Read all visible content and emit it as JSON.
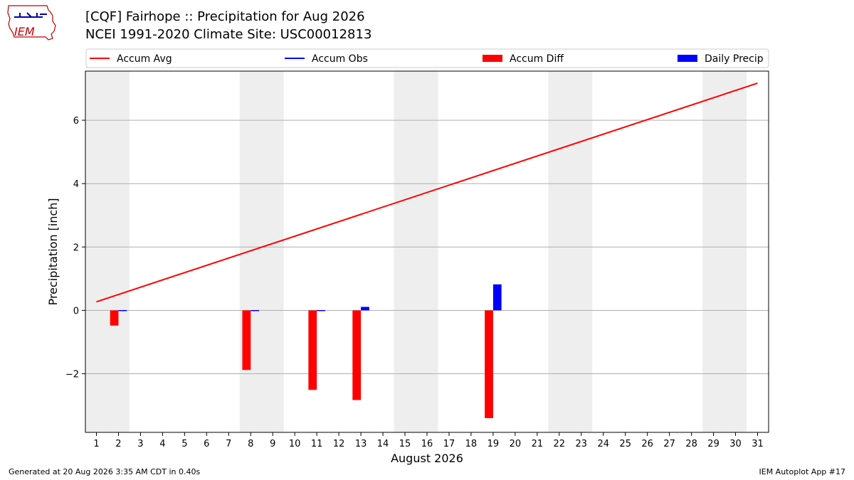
{
  "header": {
    "title_line1": "[CQF] Fairhope :: Precipitation for Aug 2026",
    "title_line2": "NCEI 1991-2020 Climate Site: USC00012813"
  },
  "logo": {
    "text": "IEM"
  },
  "footer": {
    "generated": "Generated at 20 Aug 2026 3:35 AM CDT in 0.40s",
    "app": "IEM Autoplot App #17"
  },
  "colors": {
    "accum_avg": "#ff0000",
    "accum_obs": "#0000ff",
    "accum_diff": "#ff0000",
    "daily_precip": "#0000ff",
    "weekend_shade": "#eeeeee",
    "grid": "#b0b0b0"
  },
  "chart_data": {
    "type": "bar",
    "xlabel": "August 2026",
    "ylabel": "Precipitation [inch]",
    "xlim": [
      0.5,
      31.5
    ],
    "ylim": [
      -3.85,
      7.55
    ],
    "x_ticks": [
      1,
      2,
      3,
      4,
      5,
      6,
      7,
      8,
      9,
      10,
      11,
      12,
      13,
      14,
      15,
      16,
      17,
      18,
      19,
      20,
      21,
      22,
      23,
      24,
      25,
      26,
      27,
      28,
      29,
      30,
      31
    ],
    "y_ticks": [
      -2,
      0,
      2,
      4,
      6
    ],
    "y_tick_labels": [
      "−2",
      "0",
      "2",
      "4",
      "6"
    ],
    "grid": "horizontal",
    "weekend_days": [
      1,
      2,
      8,
      9,
      15,
      16,
      22,
      23,
      29,
      30
    ],
    "legend": {
      "position": "top",
      "entries": [
        {
          "label": "Accum Avg",
          "kind": "line",
          "color": "#ff0000"
        },
        {
          "label": "Accum Obs",
          "kind": "line",
          "color": "#0000ff"
        },
        {
          "label": "Accum Diff",
          "kind": "bar",
          "color": "#ff0000"
        },
        {
          "label": "Daily Precip",
          "kind": "bar",
          "color": "#0000ff"
        }
      ]
    },
    "series": [
      {
        "name": "Accum Avg",
        "type": "line",
        "x": [
          1,
          31
        ],
        "values": [
          0.27,
          7.17
        ]
      },
      {
        "name": "Accum Diff",
        "type": "bar",
        "x": [
          2,
          8,
          11,
          13,
          19
        ],
        "values": [
          -0.48,
          -1.88,
          -2.51,
          -2.83,
          -3.4
        ]
      },
      {
        "name": "Daily Precip",
        "type": "bar",
        "x": [
          2,
          8,
          11,
          13,
          19
        ],
        "values": [
          0.01,
          0.01,
          0.01,
          0.11,
          0.82
        ]
      }
    ]
  }
}
